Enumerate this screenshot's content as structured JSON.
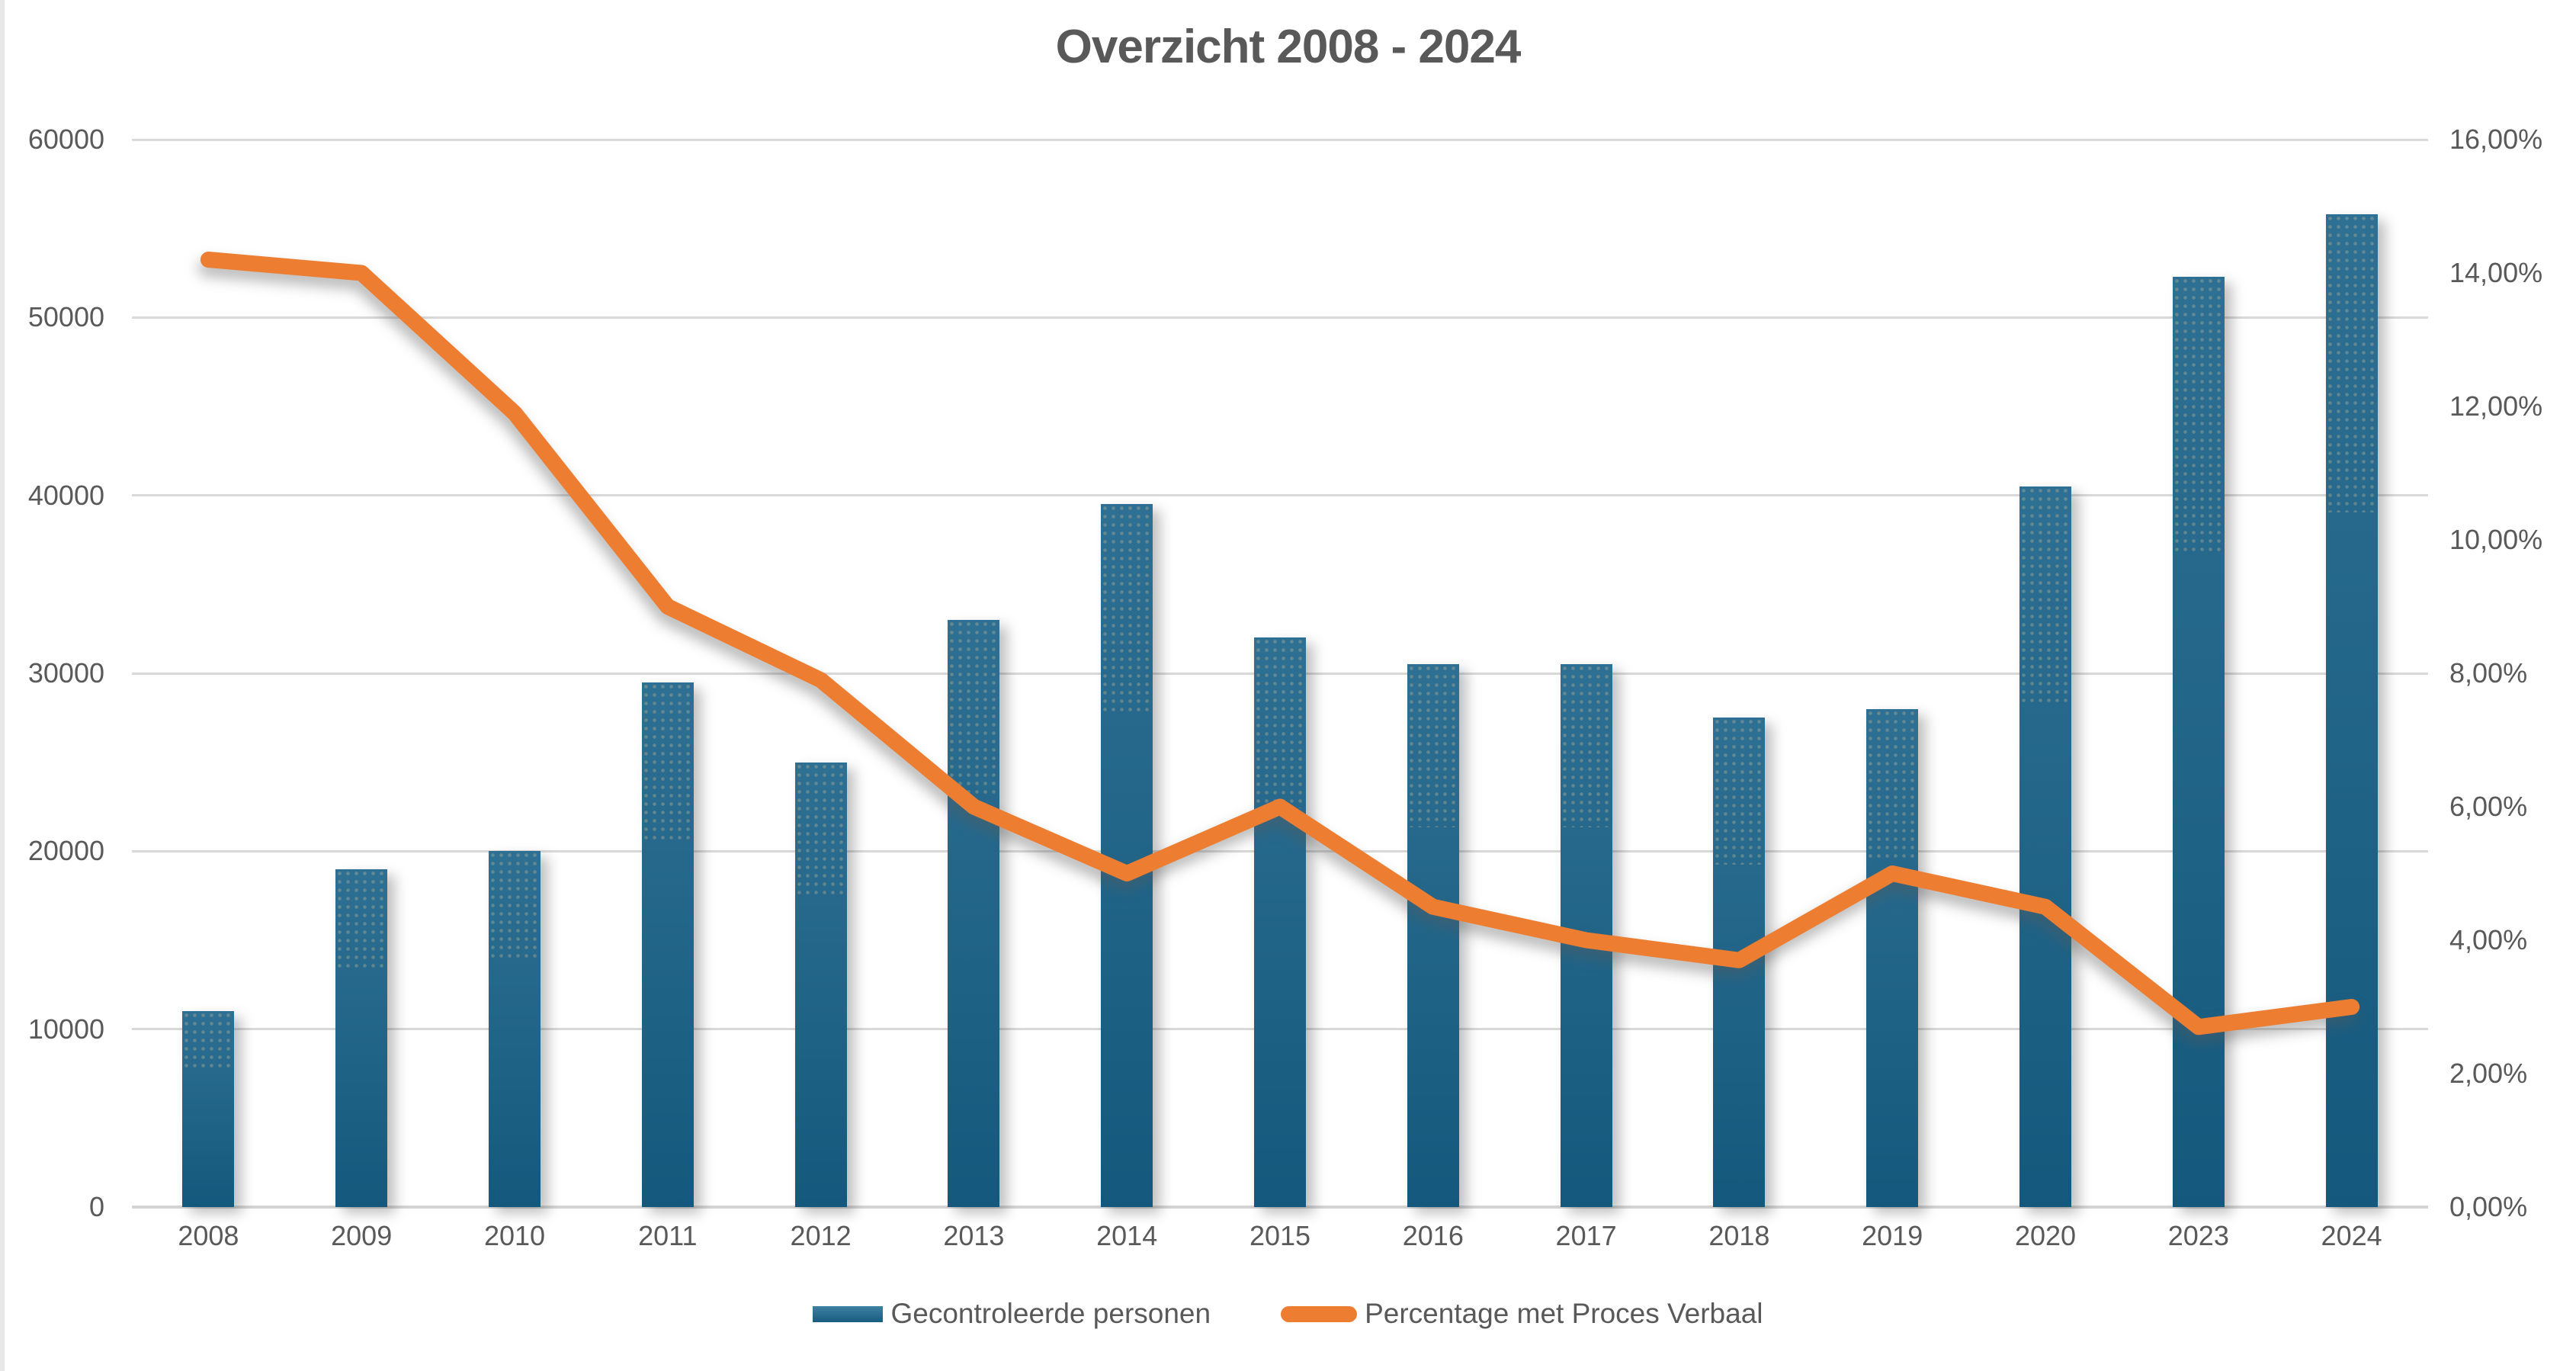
{
  "title": "Overzicht 2008 - 2024",
  "legend": {
    "bar_label": "Gecontroleerde personen",
    "line_label": "Percentage met Proces Verbaal"
  },
  "colors": {
    "bar_top": "#2E7093",
    "bar_bottom": "#14597D",
    "line": "#ED7D31",
    "text": "#595959",
    "gridline": "#D9D9D9",
    "baseline": "#D4D4D4"
  },
  "chart_data": {
    "type": "bar",
    "title": "Overzicht 2008 - 2024",
    "categories": [
      "2008",
      "2009",
      "2010",
      "2011",
      "2012",
      "2013",
      "2014",
      "2015",
      "2016",
      "2017",
      "2018",
      "2019",
      "2020",
      "2023",
      "2024"
    ],
    "series": [
      {
        "name": "Gecontroleerde personen",
        "type": "bar",
        "axis": "left",
        "values": [
          11000,
          19000,
          20000,
          29500,
          25000,
          33000,
          39500,
          32000,
          30500,
          30500,
          27500,
          28000,
          40500,
          52300,
          55800
        ]
      },
      {
        "name": "Percentage met Proces Verbaal",
        "type": "line",
        "axis": "right",
        "values": [
          14.2,
          14.0,
          11.9,
          9.0,
          7.9,
          6.0,
          5.0,
          6.0,
          4.5,
          4.0,
          3.7,
          5.0,
          4.5,
          2.7,
          3.0
        ]
      }
    ],
    "left_axis": {
      "min": 0,
      "max": 60000,
      "tick_step": 10000,
      "tick_labels": [
        "0",
        "10000",
        "20000",
        "30000",
        "40000",
        "50000",
        "60000"
      ]
    },
    "right_axis": {
      "min": 0,
      "max": 16,
      "tick_step": 2,
      "tick_labels": [
        "0,00%",
        "2,00%",
        "4,00%",
        "6,00%",
        "8,00%",
        "10,00%",
        "12,00%",
        "14,00%",
        "16,00%"
      ]
    },
    "grid": true,
    "legend_position": "bottom"
  }
}
